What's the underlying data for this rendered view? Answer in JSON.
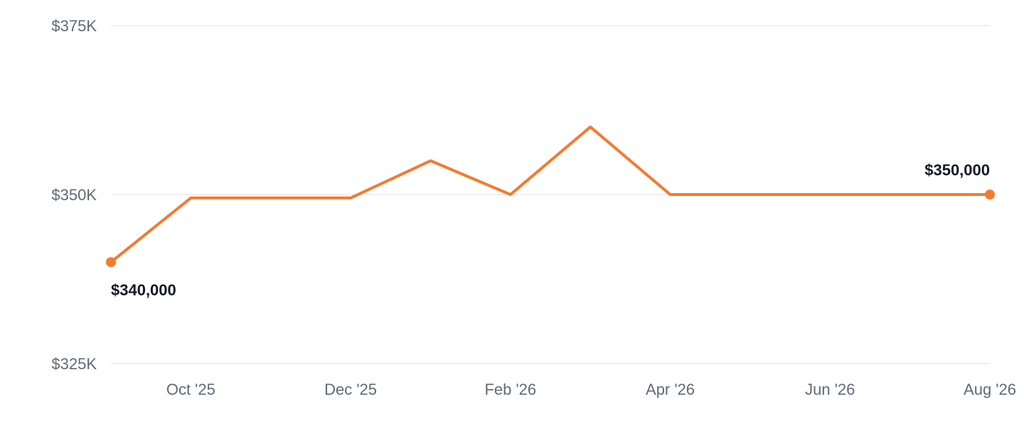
{
  "chart_data": {
    "type": "line",
    "title": "",
    "xlabel": "",
    "ylabel": "",
    "x_tick_labels": [
      "Oct '25",
      "Dec '25",
      "Feb '26",
      "Apr '26",
      "Jun '26",
      "Aug '26"
    ],
    "y_tick_labels": [
      "$375K",
      "$350K",
      "$325K"
    ],
    "y_ticks": [
      375000,
      350000,
      325000
    ],
    "ylim": [
      325000,
      375000
    ],
    "xlim": [
      "2025-09-01",
      "2026-08-01"
    ],
    "grid": true,
    "series": [
      {
        "color": "#f47a2f",
        "points": [
          {
            "x": "2025-09-01",
            "y": 340000
          },
          {
            "x": "2025-10-01",
            "y": 349500
          },
          {
            "x": "2025-11-01",
            "y": 349500
          },
          {
            "x": "2025-12-01",
            "y": 349500
          },
          {
            "x": "2026-01-01",
            "y": 355000
          },
          {
            "x": "2026-02-01",
            "y": 350000
          },
          {
            "x": "2026-03-01",
            "y": 360000
          },
          {
            "x": "2026-04-01",
            "y": 350000
          },
          {
            "x": "2026-05-01",
            "y": 350000
          },
          {
            "x": "2026-06-01",
            "y": 350000
          },
          {
            "x": "2026-07-01",
            "y": 350000
          },
          {
            "x": "2026-08-01",
            "y": 350000
          }
        ]
      }
    ],
    "annotations": [
      {
        "x": "2025-09-01",
        "y": 340000,
        "label": "$340,000",
        "position": "below"
      },
      {
        "x": "2026-08-01",
        "y": 350000,
        "label": "$350,000",
        "position": "above"
      }
    ]
  }
}
